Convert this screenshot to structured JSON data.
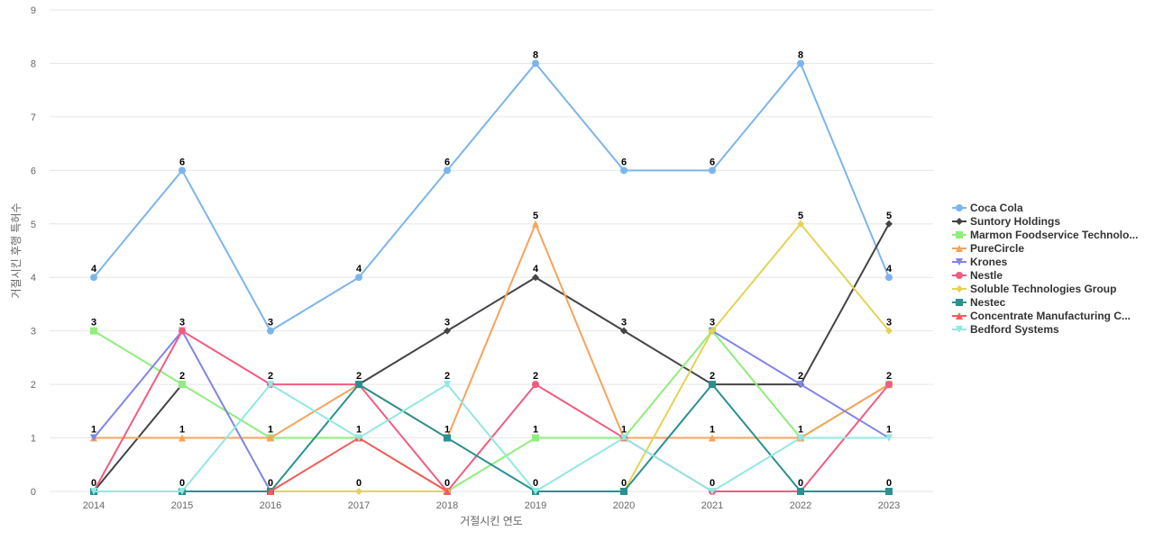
{
  "chart_data": {
    "type": "line",
    "xlabel": "거절시킨 연도",
    "ylabel": "거절시킨 후행 특허수",
    "x": [
      "2014",
      "2015",
      "2016",
      "2017",
      "2018",
      "2019",
      "2020",
      "2021",
      "2022",
      "2023"
    ],
    "ylim": [
      0,
      9
    ],
    "yticks": [
      0,
      1,
      2,
      3,
      4,
      5,
      6,
      7,
      8,
      9
    ],
    "grid": true,
    "legend_position": "right",
    "series": [
      {
        "name": "Coca Cola",
        "color": "#7cb5ec",
        "marker": "circle",
        "values": [
          4,
          6,
          3,
          4,
          6,
          8,
          6,
          6,
          8,
          4
        ]
      },
      {
        "name": "Suntory Holdings",
        "color": "#434348",
        "marker": "diamond",
        "values": [
          0,
          2,
          null,
          2,
          3,
          4,
          3,
          2,
          2,
          5
        ]
      },
      {
        "name": "Marmon Foodservice Technolo...",
        "color": "#90ed7d",
        "marker": "square",
        "values": [
          3,
          2,
          1,
          1,
          0,
          1,
          1,
          3,
          1,
          2
        ]
      },
      {
        "name": "PureCircle",
        "color": "#f7a35c",
        "marker": "triangle",
        "values": [
          1,
          1,
          1,
          2,
          1,
          5,
          1,
          1,
          1,
          2
        ]
      },
      {
        "name": "Krones",
        "color": "#8085e9",
        "marker": "triangle-down",
        "values": [
          1,
          3,
          0,
          null,
          null,
          null,
          null,
          3,
          2,
          1
        ]
      },
      {
        "name": "Nestle",
        "color": "#f15c80",
        "marker": "circle",
        "values": [
          0,
          3,
          2,
          2,
          0,
          2,
          1,
          0,
          0,
          2
        ]
      },
      {
        "name": "Soluble Technologies Group",
        "color": "#e4d354",
        "marker": "diamond",
        "values": [
          null,
          0,
          0,
          0,
          0,
          null,
          0,
          3,
          5,
          3
        ]
      },
      {
        "name": "Nestec",
        "color": "#2b908f",
        "marker": "square",
        "values": [
          0,
          0,
          0,
          2,
          1,
          0,
          0,
          2,
          0,
          0
        ]
      },
      {
        "name": "Concentrate Manufacturing C...",
        "color": "#f45b5b",
        "marker": "triangle",
        "values": [
          null,
          null,
          0,
          1,
          0,
          null,
          null,
          null,
          null,
          null
        ]
      },
      {
        "name": "Bedford Systems",
        "color": "#91e8e1",
        "marker": "triangle-down",
        "values": [
          0,
          0,
          2,
          1,
          2,
          0,
          1,
          0,
          1,
          1
        ]
      }
    ],
    "data_labels": [
      {
        "x": "2014",
        "value": 4
      },
      {
        "x": "2014",
        "value": 3
      },
      {
        "x": "2014",
        "value": 1
      },
      {
        "x": "2014",
        "value": 0
      },
      {
        "x": "2015",
        "value": 6
      },
      {
        "x": "2015",
        "value": 3
      },
      {
        "x": "2015",
        "value": 2
      },
      {
        "x": "2015",
        "value": 1
      },
      {
        "x": "2015",
        "value": 0
      },
      {
        "x": "2016",
        "value": 3
      },
      {
        "x": "2016",
        "value": 2
      },
      {
        "x": "2016",
        "value": 1
      },
      {
        "x": "2016",
        "value": 0
      },
      {
        "x": "2017",
        "value": 4
      },
      {
        "x": "2017",
        "value": 2
      },
      {
        "x": "2017",
        "value": 1
      },
      {
        "x": "2017",
        "value": 0
      },
      {
        "x": "2018",
        "value": 6
      },
      {
        "x": "2018",
        "value": 3
      },
      {
        "x": "2018",
        "value": 2
      },
      {
        "x": "2018",
        "value": 1
      },
      {
        "x": "2018",
        "value": 0
      },
      {
        "x": "2019",
        "value": 8
      },
      {
        "x": "2019",
        "value": 5
      },
      {
        "x": "2019",
        "value": 4
      },
      {
        "x": "2019",
        "value": 2
      },
      {
        "x": "2019",
        "value": 1
      },
      {
        "x": "2019",
        "value": 0
      },
      {
        "x": "2020",
        "value": 6
      },
      {
        "x": "2020",
        "value": 3
      },
      {
        "x": "2020",
        "value": 1
      },
      {
        "x": "2020",
        "value": 0
      },
      {
        "x": "2021",
        "value": 6
      },
      {
        "x": "2021",
        "value": 3
      },
      {
        "x": "2021",
        "value": 2
      },
      {
        "x": "2021",
        "value": 1
      },
      {
        "x": "2021",
        "value": 0
      },
      {
        "x": "2022",
        "value": 8
      },
      {
        "x": "2022",
        "value": 5
      },
      {
        "x": "2022",
        "value": 2
      },
      {
        "x": "2022",
        "value": 1
      },
      {
        "x": "2022",
        "value": 0
      },
      {
        "x": "2023",
        "value": 5
      },
      {
        "x": "2023",
        "value": 4
      },
      {
        "x": "2023",
        "value": 3
      },
      {
        "x": "2023",
        "value": 2
      },
      {
        "x": "2023",
        "value": 1
      },
      {
        "x": "2023",
        "value": 0
      }
    ]
  }
}
